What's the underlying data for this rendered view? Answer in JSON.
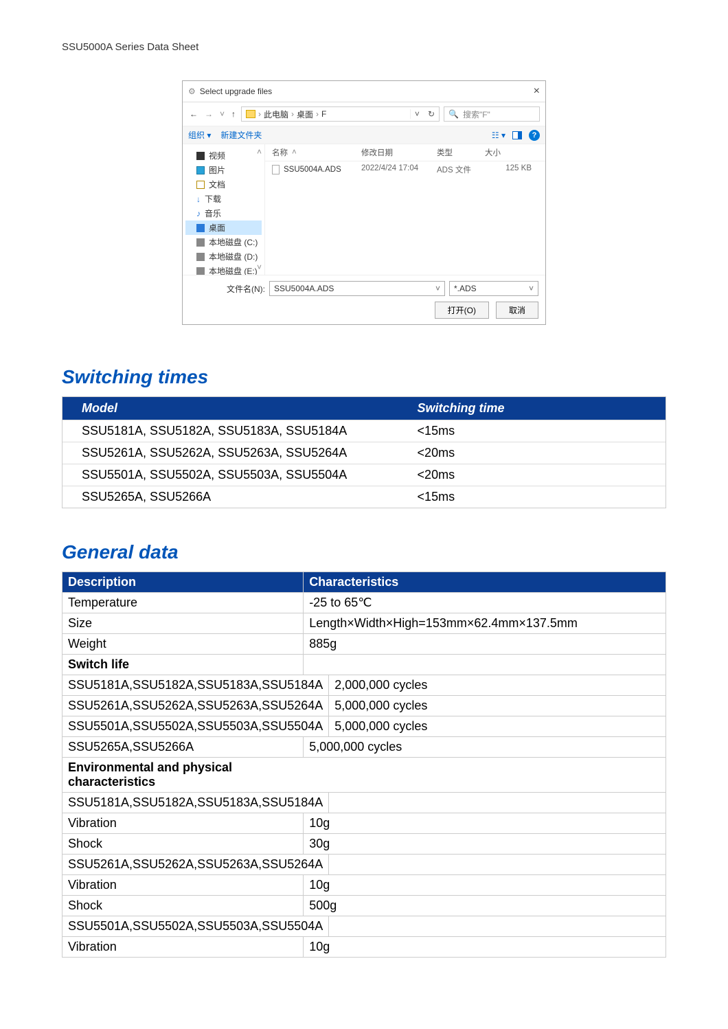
{
  "doc_title": "SSU5000A Series Data Sheet",
  "dialog": {
    "title": "Select upgrade files",
    "path_parts": [
      "此电脑",
      "桌面",
      "F"
    ],
    "search_placeholder": "搜索\"F\"",
    "toolbar": {
      "organize": "组织",
      "new_folder": "新建文件夹"
    },
    "sidebar": {
      "items": [
        {
          "label": "视频",
          "icon": "video"
        },
        {
          "label": "图片",
          "icon": "pic"
        },
        {
          "label": "文档",
          "icon": "doc"
        },
        {
          "label": "下载",
          "icon": "dl"
        },
        {
          "label": "音乐",
          "icon": "music"
        },
        {
          "label": "桌面",
          "icon": "desk",
          "selected": true
        },
        {
          "label": "本地磁盘 (C:)",
          "icon": "disk"
        },
        {
          "label": "本地磁盘 (D:)",
          "icon": "disk"
        },
        {
          "label": "本地磁盘 (E:)",
          "icon": "disk"
        }
      ]
    },
    "file_header": {
      "name": "名称",
      "date": "修改日期",
      "type": "类型",
      "size": "大小"
    },
    "files": [
      {
        "name": "SSU5004A.ADS",
        "date": "2022/4/24 17:04",
        "type": "ADS 文件",
        "size": "125 KB"
      }
    ],
    "filename_label": "文件名(N):",
    "filename_value": "SSU5004A.ADS",
    "filter_value": "*.ADS",
    "open_btn": "打开(O)",
    "cancel_btn": "取消"
  },
  "switching": {
    "title": "Switching times",
    "header": {
      "c1": "Model",
      "c2": "Switching time"
    },
    "rows": [
      {
        "c1": "SSU5181A, SSU5182A, SSU5183A, SSU5184A",
        "c2": "<15ms"
      },
      {
        "c1": "SSU5261A, SSU5262A, SSU5263A, SSU5264A",
        "c2": "<20ms"
      },
      {
        "c1": "SSU5501A, SSU5502A, SSU5503A, SSU5504A",
        "c2": "<20ms"
      },
      {
        "c1": "SSU5265A, SSU5266A",
        "c2": "<15ms"
      }
    ]
  },
  "general": {
    "title": "General data",
    "header": {
      "c1": "Description",
      "c2": "Characteristics"
    },
    "rows": [
      {
        "kind": "row",
        "c1": "Temperature",
        "c2": "-25 to 65℃"
      },
      {
        "kind": "row",
        "c1": "Size",
        "c2": "Length×Width×High=153mm×62.4mm×137.5mm"
      },
      {
        "kind": "row",
        "c1": "Weight",
        "c2": "885g"
      },
      {
        "kind": "subhdr",
        "c1": "Switch life",
        "c2": ""
      },
      {
        "kind": "row",
        "c1": "SSU5181A,SSU5182A,SSU5183A,SSU5184A",
        "c2": "2,000,000 cycles"
      },
      {
        "kind": "row",
        "c1": "SSU5261A,SSU5262A,SSU5263A,SSU5264A",
        "c2": "5,000,000 cycles"
      },
      {
        "kind": "row",
        "c1": "SSU5501A,SSU5502A,SSU5503A,SSU5504A",
        "c2": "5,000,000 cycles"
      },
      {
        "kind": "row",
        "c1": "SSU5265A,SSU5266A",
        "c2": "5,000,000 cycles"
      },
      {
        "kind": "span",
        "c1": "Environmental and physical characteristics",
        "c2": ""
      },
      {
        "kind": "row",
        "c1": "SSU5181A,SSU5182A,SSU5183A,SSU5184A",
        "c2": ""
      },
      {
        "kind": "row",
        "c1": "Vibration",
        "c2": "10g"
      },
      {
        "kind": "row",
        "c1": "Shock",
        "c2": "30g"
      },
      {
        "kind": "row",
        "c1": "SSU5261A,SSU5262A,SSU5263A,SSU5264A",
        "c2": ""
      },
      {
        "kind": "row",
        "c1": "Vibration",
        "c2": "10g"
      },
      {
        "kind": "row",
        "c1": "Shock",
        "c2": "500g"
      },
      {
        "kind": "row",
        "c1": "SSU5501A,SSU5502A,SSU5503A,SSU5504A",
        "c2": ""
      },
      {
        "kind": "row",
        "c1": "Vibration",
        "c2": "10g"
      }
    ]
  },
  "colors": {
    "heading": "#0055b8",
    "table_header_bg": "#0b3d91",
    "table_header_fg": "#ffffff"
  }
}
